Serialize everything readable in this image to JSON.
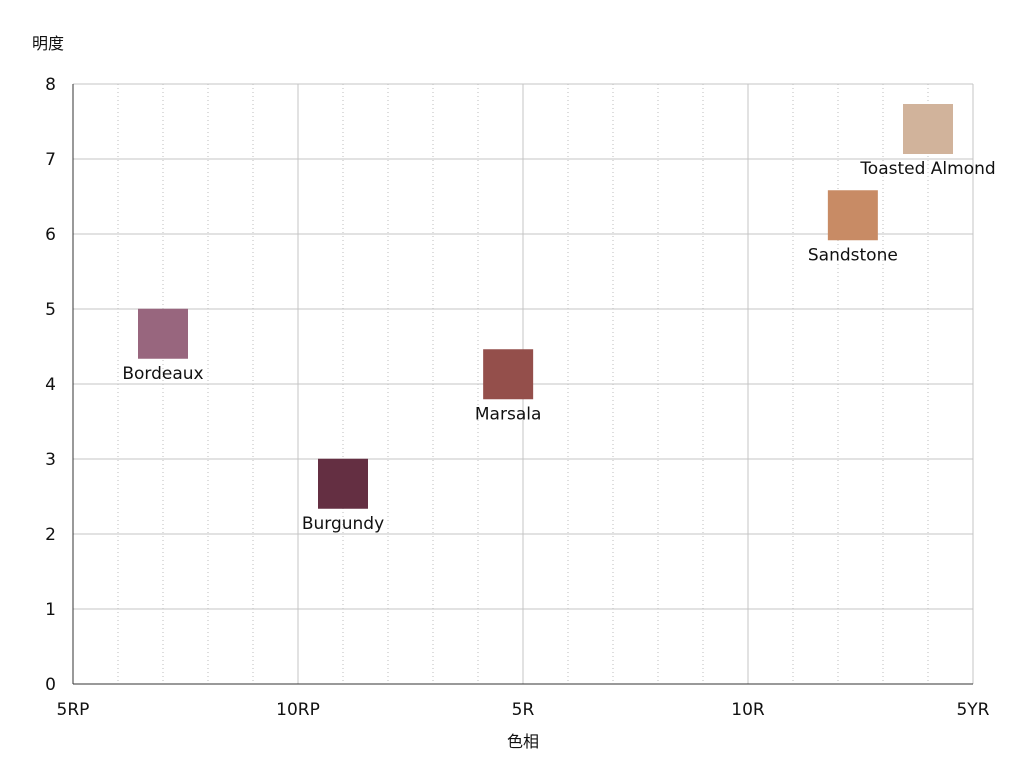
{
  "chart_data": {
    "type": "scatter",
    "title": "",
    "xlabel": "色相",
    "ylabel": "明度",
    "x_ticks": [
      "5RP",
      "10RP",
      "5R",
      "10R",
      "5YR"
    ],
    "xlim": [
      0,
      20
    ],
    "ylim": [
      0,
      8
    ],
    "y_ticks": [
      0,
      1,
      2,
      3,
      4,
      5,
      6,
      7,
      8
    ],
    "grid": true,
    "legend": "none",
    "points": [
      {
        "label": "Bordeaux",
        "x": 2.0,
        "y": 4.67,
        "color": "#98667E"
      },
      {
        "label": "Burgundy",
        "x": 6.0,
        "y": 2.67,
        "color": "#642F42"
      },
      {
        "label": "Marsala",
        "x": 9.67,
        "y": 4.13,
        "color": "#944F4B"
      },
      {
        "label": "Sandstone",
        "x": 17.33,
        "y": 6.25,
        "color": "#C88B65"
      },
      {
        "label": "Toasted Almond",
        "x": 19.0,
        "y": 7.4,
        "color": "#D1B39B"
      }
    ]
  }
}
